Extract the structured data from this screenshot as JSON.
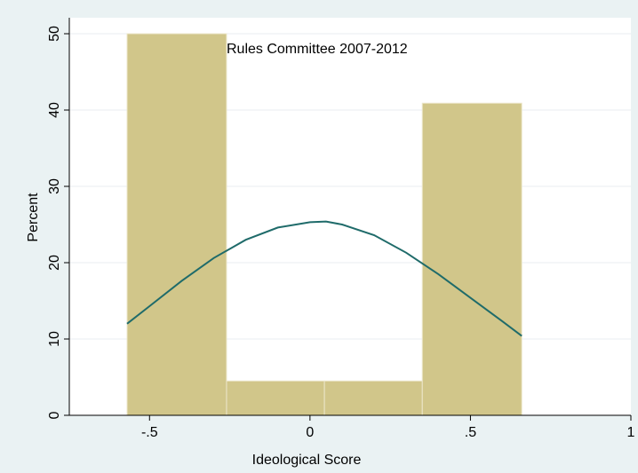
{
  "chart_data": {
    "type": "bar",
    "subtype": "histogram with normal density overlay",
    "annotation": "Rules Committee 2007-2012",
    "xlabel": "Ideological Score",
    "ylabel": "Percent",
    "xlim": [
      -0.75,
      1.0
    ],
    "ylim": [
      0,
      50
    ],
    "x_ticks": [
      -0.5,
      0,
      0.5,
      1
    ],
    "x_tick_labels": [
      "-.5",
      "0",
      ".5",
      "1"
    ],
    "y_ticks": [
      0,
      10,
      20,
      30,
      40,
      50
    ],
    "y_tick_labels": [
      "0",
      "10",
      "20",
      "30",
      "40",
      "50"
    ],
    "grid": true,
    "bins": [
      {
        "x0": -0.57,
        "x1": -0.26,
        "value": 50.0
      },
      {
        "x0": -0.26,
        "x1": 0.045,
        "value": 4.5
      },
      {
        "x0": 0.045,
        "x1": 0.35,
        "value": 4.5
      },
      {
        "x0": 0.35,
        "x1": 0.66,
        "value": 40.9
      }
    ],
    "density_curve": {
      "x_range": [
        -0.57,
        0.66
      ],
      "x": [
        -0.57,
        -0.5,
        -0.4,
        -0.3,
        -0.2,
        -0.1,
        0.0,
        0.05,
        0.1,
        0.2,
        0.3,
        0.4,
        0.5,
        0.6,
        0.66
      ],
      "y": [
        12.0,
        14.3,
        17.6,
        20.6,
        23.0,
        24.6,
        25.3,
        25.4,
        25.0,
        23.6,
        21.3,
        18.5,
        15.4,
        12.3,
        10.4
      ]
    },
    "colors": {
      "bar_fill": "#d1c68a",
      "bar_outline": "#ece7cb",
      "curve": "#1f6b6a",
      "plot_background": "#ffffff",
      "outer_background": "#eaf2f3",
      "grid": "#e9eef0"
    }
  }
}
